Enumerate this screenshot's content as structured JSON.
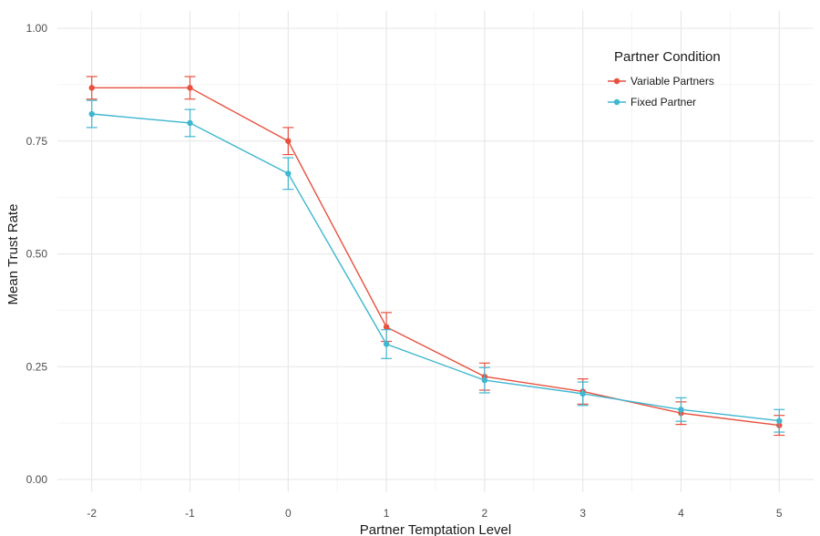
{
  "chart_data": {
    "type": "line",
    "xlabel": "Partner Temptation Level",
    "ylabel": "Mean Trust Rate",
    "x": [
      -2,
      -1,
      0,
      1,
      2,
      3,
      4,
      5
    ],
    "x_tick_labels": [
      "-2",
      "-1",
      "0",
      "1",
      "2",
      "3",
      "4",
      "5"
    ],
    "xlim": [
      -2.35,
      5.35
    ],
    "ylim": [
      0,
      1
    ],
    "y_ticks": [
      0,
      0.25,
      0.5,
      0.75,
      1
    ],
    "y_tick_labels": [
      "0.00",
      "0.25",
      "0.50",
      "0.75",
      "1.00"
    ],
    "grid": true,
    "legend": {
      "title": "Partner Condition",
      "position": "top-right"
    },
    "series": [
      {
        "name": "Variable Partners",
        "color": "#e8513f",
        "values": [
          0.868,
          0.868,
          0.75,
          0.338,
          0.228,
          0.195,
          0.147,
          0.12
        ],
        "error": [
          0.025,
          0.025,
          0.03,
          0.032,
          0.03,
          0.028,
          0.025,
          0.022
        ]
      },
      {
        "name": "Fixed Partner",
        "color": "#3fb7d0",
        "values": [
          0.81,
          0.79,
          0.678,
          0.3,
          0.22,
          0.19,
          0.155,
          0.13
        ],
        "error": [
          0.03,
          0.03,
          0.035,
          0.032,
          0.028,
          0.026,
          0.026,
          0.025
        ]
      }
    ]
  }
}
